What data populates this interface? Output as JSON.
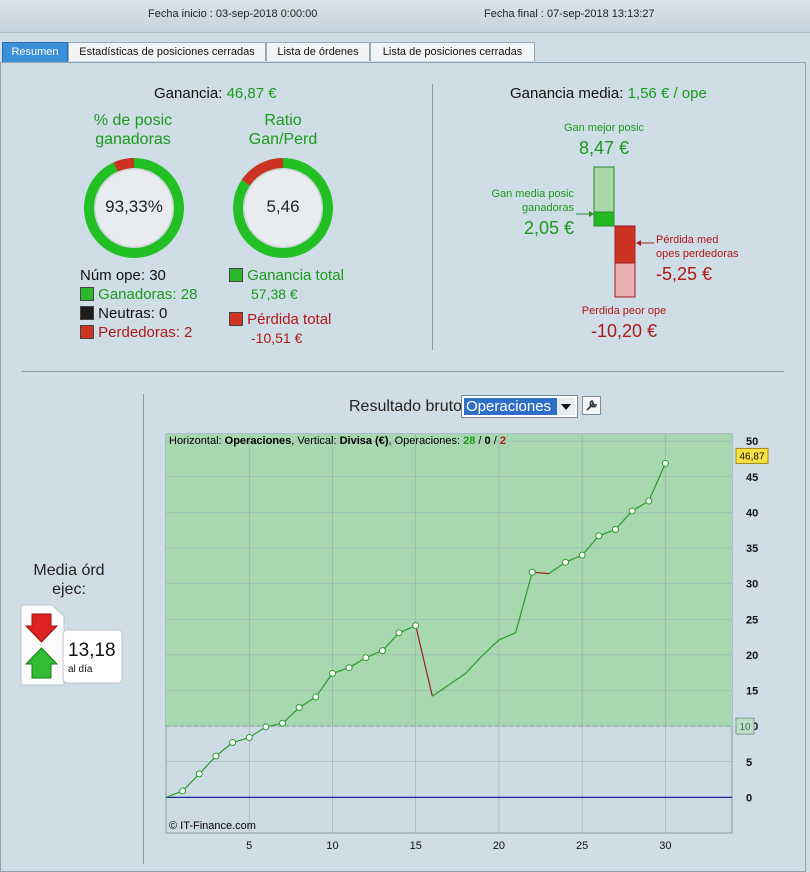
{
  "header": {
    "fecha_inicio": "Fecha inicio : 03-sep-2018 0:00:00",
    "fecha_final": "Fecha final : 07-sep-2018 13:13:27"
  },
  "tabs": [
    {
      "label": "Resumen",
      "active": true
    },
    {
      "label": "Estadísticas de posiciones cerradas",
      "active": false
    },
    {
      "label": "Lista de órdenes",
      "active": false
    },
    {
      "label": "Lista de posiciones cerradas",
      "active": false
    }
  ],
  "summary": {
    "ganancia_label": "Ganancia:",
    "ganancia_value": "46,87 €",
    "pct_title_1": "% de posic",
    "pct_title_2": "ganadoras",
    "pct_value": "93,33%",
    "pct_fraction": 0.9333,
    "ratio_title_1": "Ratio",
    "ratio_title_2": "Gan/Perd",
    "ratio_value": "5,46",
    "ratio_fraction": 0.845,
    "num_ope": "Núm ope: 30",
    "ganadoras": "Ganadoras: 28",
    "neutras": "Neutras: 0",
    "perdedoras": "Perdedoras: 2",
    "ganancia_total_label": "Ganancia total",
    "ganancia_total_value": "57,38 €",
    "perdida_total_label": "Pérdida total",
    "perdida_total_value": "-10,51 €"
  },
  "media": {
    "title_label": "Ganancia media:",
    "title_value": "1,56 € / ope",
    "mejor_label": "Gan mejor posic",
    "mejor_value": "8,47 €",
    "media_gan_label_1": "Gan media posic",
    "media_gan_label_2": "ganadoras",
    "media_gan_value": "2,05 €",
    "media_perd_label_1": "Pérdida med",
    "media_perd_label_2": "opes perdedoras",
    "media_perd_value": "-5,25 €",
    "peor_label": "Perdida peor ope",
    "peor_value": "-10,20 €"
  },
  "side": {
    "title_1": "Media órd",
    "title_2": "ejec:",
    "value": "13,18",
    "unit": "al día"
  },
  "chart_header": {
    "label": "Resultado bruto",
    "dropdown_value": "Operaciones"
  },
  "chart_data": {
    "type": "line",
    "info_prefix": "Horizontal: ",
    "info_h": "Operaciones",
    "info_mid": ", Vertical: ",
    "info_v": "Divisa (€)",
    "info_ops": ", Operaciones: ",
    "info_win": "28",
    "info_sep1": " / ",
    "info_neu": "0",
    "info_sep2": " / ",
    "info_loss": "2",
    "watermark": "© IT-Finance.com",
    "x_ticks": [
      5,
      10,
      15,
      20,
      25,
      30
    ],
    "y_ticks": [
      0,
      5,
      10,
      15,
      20,
      25,
      30,
      35,
      40,
      45,
      50
    ],
    "xlim": [
      0,
      34
    ],
    "ylim": [
      -5,
      51
    ],
    "threshold": 10,
    "threshold_label": "10",
    "last_value_label": "46,87",
    "x": [
      0,
      1,
      2,
      3,
      4,
      5,
      6,
      7,
      8,
      9,
      10,
      11,
      12,
      13,
      14,
      15,
      16,
      17,
      18,
      19,
      20,
      21,
      22,
      23,
      24,
      25,
      26,
      27,
      28,
      29,
      30
    ],
    "y": [
      0,
      0.9,
      3.3,
      5.8,
      7.7,
      8.4,
      9.9,
      10.4,
      12.6,
      14.1,
      17.4,
      18.2,
      19.6,
      20.6,
      23.1,
      24.1,
      14.2,
      15.8,
      17.4,
      19.9,
      22.1,
      23.1,
      31.6,
      31.4,
      33.0,
      34.0,
      36.7,
      37.6,
      40.2,
      41.6,
      46.87
    ],
    "losing_segments": [
      16,
      23
    ],
    "markers": [
      1,
      2,
      3,
      4,
      5,
      6,
      7,
      8,
      9,
      10,
      11,
      12,
      13,
      14,
      15,
      22,
      24,
      25,
      26,
      27,
      28,
      29,
      30
    ],
    "colors": {
      "win": "#2c9a2c",
      "loss": "#a02020",
      "area": "#a8d8b0",
      "zero": "#1a2a9a"
    }
  }
}
